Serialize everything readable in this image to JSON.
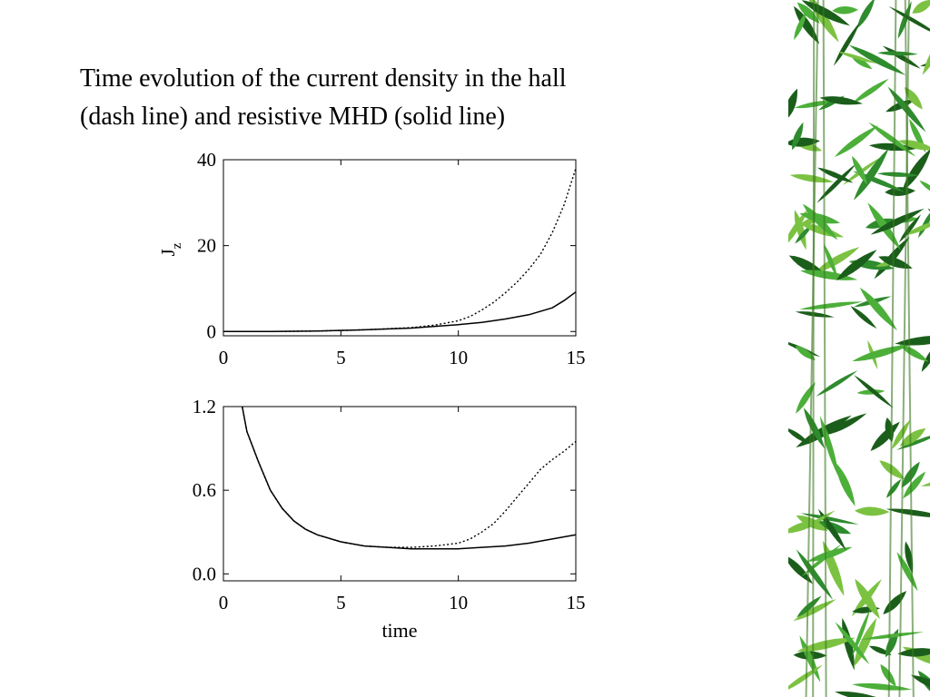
{
  "slide": {
    "title_line1": "Time evolution of the current density in the hall",
    "title_line2": "(dash line) and resistive MHD (solid line)"
  },
  "decoration": {
    "icon": "bamboo-leaves-icon",
    "colors": [
      "#1b5e1b",
      "#2e8b2e",
      "#4caf3a",
      "#7cc242"
    ]
  },
  "chart_data": [
    {
      "type": "line",
      "ylabel": "J",
      "ylabel_sub": "z",
      "xlabel": "",
      "xlim": [
        0,
        15
      ],
      "ylim": [
        -1,
        40
      ],
      "xticks": [
        0,
        5,
        10,
        15
      ],
      "yticks": [
        0,
        20,
        40
      ],
      "ytick_labels": [
        "0",
        "20",
        "40"
      ],
      "grid": false,
      "series": [
        {
          "style": "solid",
          "x": [
            0,
            2,
            4,
            6,
            8,
            9,
            10,
            11,
            12,
            13,
            14,
            14.5,
            15
          ],
          "y": [
            0,
            0,
            0.1,
            0.4,
            0.8,
            1.2,
            1.6,
            2.1,
            2.9,
            3.9,
            5.5,
            7.2,
            9.2
          ]
        },
        {
          "style": "dotted",
          "x": [
            0,
            2,
            4,
            6,
            8,
            9,
            10,
            10.5,
            11,
            11.5,
            12,
            12.5,
            13,
            13.5,
            14,
            14.5,
            15
          ],
          "y": [
            0,
            0,
            0.1,
            0.4,
            0.9,
            1.5,
            2.5,
            3.5,
            5,
            6.8,
            9,
            11.5,
            14.5,
            18,
            23,
            29.5,
            38
          ]
        }
      ]
    },
    {
      "type": "line",
      "ylabel": "",
      "xlabel": "time",
      "xlim": [
        0,
        15
      ],
      "ylim": [
        -0.05,
        1.2
      ],
      "xticks": [
        0,
        5,
        10,
        15
      ],
      "yticks": [
        0,
        0.6,
        1.2
      ],
      "ytick_labels": [
        "0.0",
        "0.6",
        "1.2"
      ],
      "grid": false,
      "series": [
        {
          "style": "solid",
          "x": [
            0.8,
            1,
            1.5,
            2,
            2.5,
            3,
            3.5,
            4,
            5,
            6,
            7,
            8,
            9,
            10,
            11,
            12,
            13,
            14,
            15
          ],
          "y": [
            1.2,
            1.02,
            0.8,
            0.6,
            0.47,
            0.38,
            0.32,
            0.28,
            0.23,
            0.2,
            0.19,
            0.18,
            0.18,
            0.18,
            0.19,
            0.2,
            0.22,
            0.25,
            0.28
          ]
        },
        {
          "style": "dotted",
          "x": [
            0.8,
            1,
            1.5,
            2,
            2.5,
            3,
            3.5,
            4,
            5,
            6,
            7,
            8,
            9,
            10,
            10.5,
            11,
            11.5,
            12,
            12.5,
            13,
            13.5,
            14,
            14.5,
            15
          ],
          "y": [
            1.2,
            1.02,
            0.8,
            0.6,
            0.47,
            0.38,
            0.32,
            0.28,
            0.23,
            0.2,
            0.19,
            0.19,
            0.2,
            0.22,
            0.25,
            0.3,
            0.36,
            0.45,
            0.55,
            0.65,
            0.75,
            0.82,
            0.88,
            0.95
          ]
        }
      ]
    }
  ]
}
